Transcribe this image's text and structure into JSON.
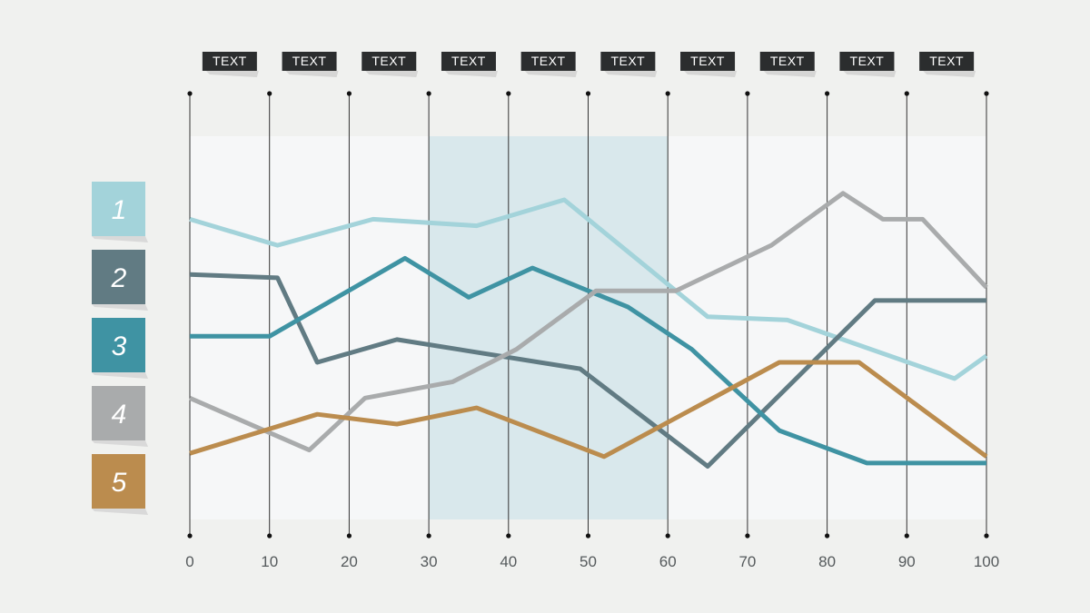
{
  "chart_data": {
    "type": "line",
    "xlim": [
      0,
      100
    ],
    "ylim": [
      0,
      100
    ],
    "x_ticks": [
      0,
      10,
      20,
      30,
      40,
      50,
      60,
      70,
      80,
      90,
      100
    ],
    "x_tick_labels": [
      "0",
      "10",
      "20",
      "30",
      "40",
      "50",
      "60",
      "70",
      "80",
      "90",
      "100"
    ],
    "column_headers": [
      "TEXT",
      "TEXT",
      "TEXT",
      "TEXT",
      "TEXT",
      "TEXT",
      "TEXT",
      "TEXT",
      "TEXT",
      "TEXT"
    ],
    "highlight_range": [
      30,
      60
    ],
    "grid": true,
    "legend_position": "left",
    "series": [
      {
        "name": "1",
        "color": "#a3d3da",
        "x": [
          0,
          11,
          23,
          36,
          47,
          65,
          75,
          96,
          100
        ],
        "y": [
          82,
          74,
          82,
          80,
          88,
          52,
          51,
          33,
          40
        ]
      },
      {
        "name": "2",
        "color": "#617b83",
        "x": [
          0,
          11,
          16,
          26,
          49,
          65,
          86,
          100
        ],
        "y": [
          65,
          64,
          38,
          45,
          36,
          6,
          57,
          57
        ]
      },
      {
        "name": "3",
        "color": "#3f93a3",
        "x": [
          0,
          10,
          27,
          35,
          43,
          55,
          63,
          74,
          85,
          100
        ],
        "y": [
          46,
          46,
          70,
          58,
          67,
          55,
          42,
          17,
          7,
          7
        ]
      },
      {
        "name": "4",
        "color": "#a9abac",
        "x": [
          0,
          15,
          22,
          33,
          41,
          51,
          61,
          73,
          82,
          87,
          92,
          100
        ],
        "y": [
          27,
          11,
          27,
          32,
          42,
          60,
          60,
          74,
          90,
          82,
          82,
          61
        ]
      },
      {
        "name": "5",
        "color": "#bb8c4e",
        "x": [
          0,
          16,
          26,
          36,
          52,
          74,
          84,
          100
        ],
        "y": [
          10,
          22,
          19,
          24,
          9,
          38,
          38,
          9
        ]
      }
    ]
  }
}
